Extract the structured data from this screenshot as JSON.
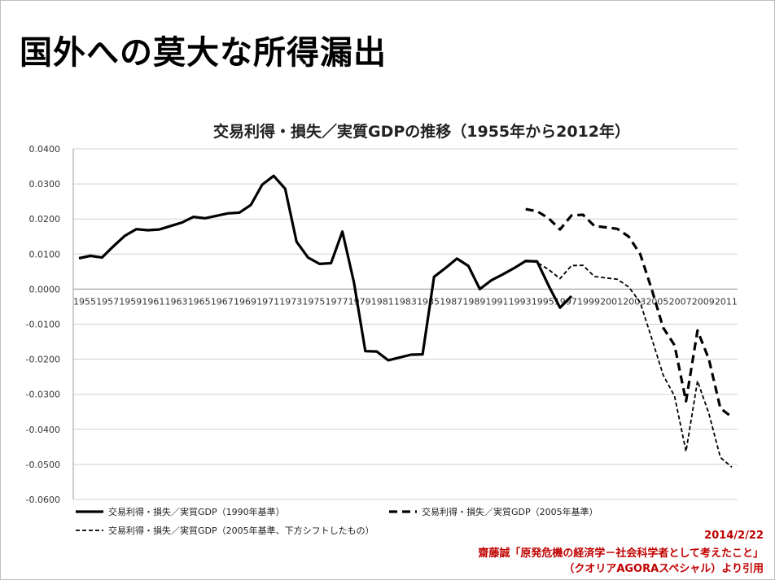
{
  "slide": {
    "title": "国外への莫大な所得漏出"
  },
  "credit": {
    "date": "2014/2/22",
    "line1": "齋藤誠「原発危機の経済学－社会科学者として考えたこと」",
    "line2": "（クオリアAGORAスペシャル）より引用",
    "color": "#c00000"
  },
  "chart_data": {
    "type": "line",
    "title": "交易利得・損失／実質GDPの推移（1955年から2012年）",
    "xlabel": "",
    "ylabel": "",
    "ylim": [
      -0.06,
      0.04
    ],
    "ytick_step": 0.01,
    "grid": true,
    "legend_position": "bottom",
    "x": [
      1955,
      1956,
      1957,
      1958,
      1959,
      1960,
      1961,
      1962,
      1963,
      1964,
      1965,
      1966,
      1967,
      1968,
      1969,
      1970,
      1971,
      1972,
      1973,
      1974,
      1975,
      1976,
      1977,
      1978,
      1979,
      1980,
      1981,
      1982,
      1983,
      1984,
      1985,
      1986,
      1987,
      1988,
      1989,
      1990,
      1991,
      1992,
      1993,
      1994,
      1995,
      1996,
      1997,
      1998,
      1999,
      2000,
      2001,
      2002,
      2003,
      2004,
      2005,
      2006,
      2007,
      2008,
      2009,
      2010,
      2011,
      2012
    ],
    "x_tick_labels": [
      "1955",
      "1957",
      "1959",
      "1961",
      "1963",
      "1965",
      "1967",
      "1969",
      "1971",
      "1973",
      "1975",
      "1977",
      "1979",
      "1981",
      "1983",
      "1985",
      "1987",
      "1989",
      "1991",
      "1993",
      "1995",
      "1997",
      "1999",
      "2001",
      "2003",
      "2005",
      "2007",
      "2009",
      "2011"
    ],
    "series": [
      {
        "name": "交易利得・損失／実質GDP（1990年基準）",
        "style": "solid",
        "x": [
          1955,
          1956,
          1957,
          1958,
          1959,
          1960,
          1961,
          1962,
          1963,
          1964,
          1965,
          1966,
          1967,
          1968,
          1969,
          1970,
          1971,
          1972,
          1973,
          1974,
          1975,
          1976,
          1977,
          1978,
          1979,
          1980,
          1981,
          1982,
          1983,
          1984,
          1985,
          1986,
          1987,
          1988,
          1989,
          1990,
          1991,
          1992,
          1993,
          1994,
          1995,
          1996,
          1997,
          1998
        ],
        "values": [
          0.0088,
          0.0095,
          0.009,
          0.0122,
          0.0152,
          0.0171,
          0.0168,
          0.017,
          0.018,
          0.019,
          0.0206,
          0.0202,
          0.0209,
          0.0216,
          0.0218,
          0.024,
          0.0298,
          0.0323,
          0.0286,
          0.0135,
          0.009,
          0.0072,
          0.0074,
          0.0164,
          0.002,
          -0.0177,
          -0.0178,
          -0.0203,
          -0.0195,
          -0.0187,
          -0.0186,
          0.0035,
          0.006,
          0.0087,
          0.0066,
          0.0,
          0.0025,
          0.0042,
          0.006,
          0.008,
          0.0079,
          0.001,
          -0.0053,
          -0.002
        ]
      },
      {
        "name": "交易利得・損失／実質GDP（2005年基準）",
        "style": "dashed",
        "x": [
          1994,
          1995,
          1996,
          1997,
          1998,
          1999,
          2000,
          2001,
          2002,
          2003,
          2004,
          2005,
          2006,
          2007,
          2008,
          2009,
          2010,
          2011,
          2012
        ],
        "values": [
          0.0228,
          0.0222,
          0.0202,
          0.017,
          0.021,
          0.0212,
          0.018,
          0.0176,
          0.0172,
          0.015,
          0.01,
          0.0,
          -0.011,
          -0.016,
          -0.032,
          -0.0118,
          -0.02,
          -0.034,
          -0.0365
        ]
      },
      {
        "name": "交易利得・損失／実質GDP（2005年基準、下方シフトしたもの）",
        "style": "dotted",
        "x": [
          1994,
          1995,
          1996,
          1997,
          1998,
          1999,
          2000,
          2001,
          2002,
          2003,
          2004,
          2005,
          2006,
          2007,
          2008,
          2009,
          2010,
          2011,
          2012
        ],
        "values": [
          0.0082,
          0.0076,
          0.0056,
          0.003,
          0.0067,
          0.0068,
          0.0036,
          0.0032,
          0.0028,
          0.0006,
          -0.0038,
          -0.014,
          -0.0245,
          -0.0305,
          -0.0463,
          -0.0262,
          -0.0355,
          -0.048,
          -0.0508
        ]
      }
    ]
  }
}
